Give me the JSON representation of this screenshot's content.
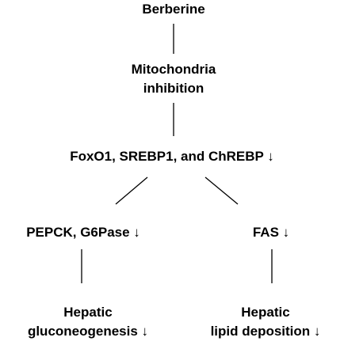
{
  "diagram": {
    "nodes": {
      "berberine": {
        "lines": [
          "Berberine"
        ]
      },
      "mitochondria": {
        "lines": [
          "Mitochondria",
          "inhibition"
        ]
      },
      "transcription": {
        "lines": [
          "FoxO1, SREBP1, and ChREBP ↓"
        ]
      },
      "enzymes_left": {
        "lines": [
          "PEPCK, G6Pase ↓"
        ]
      },
      "enzymes_right": {
        "lines": [
          "FAS ↓"
        ]
      },
      "outcome_left": {
        "lines": [
          "Hepatic",
          "gluconeogenesis ↓"
        ]
      },
      "outcome_right": {
        "lines": [
          "Hepatic",
          "lipid deposition ↓"
        ]
      }
    },
    "edges": [
      {
        "from": "berberine",
        "to": "mitochondria"
      },
      {
        "from": "mitochondria",
        "to": "transcription"
      },
      {
        "from": "transcription",
        "to": "enzymes_left"
      },
      {
        "from": "transcription",
        "to": "enzymes_right"
      },
      {
        "from": "enzymes_left",
        "to": "outcome_left"
      },
      {
        "from": "enzymes_right",
        "to": "outcome_right"
      }
    ],
    "colors": {
      "text": "#000000",
      "line": "#000000",
      "background": "#ffffff"
    }
  }
}
